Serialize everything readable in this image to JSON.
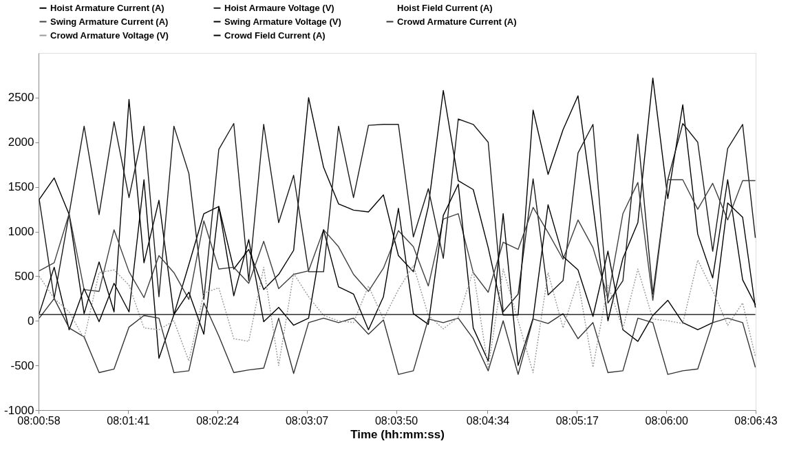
{
  "chart_data": {
    "type": "line",
    "xlabel": "Time (hh:mm:ss)",
    "xlim": [
      8.01611,
      8.11194
    ],
    "xticks": [
      {
        "value": 8.01611,
        "label": "08:00:58"
      },
      {
        "value": 8.02806,
        "label": "08:01:41"
      },
      {
        "value": 8.04,
        "label": "08:02:24"
      },
      {
        "value": 8.05194,
        "label": "08:03:07"
      },
      {
        "value": 8.06389,
        "label": "08:03:50"
      },
      {
        "value": 8.07611,
        "label": "08:04:34"
      },
      {
        "value": 8.08806,
        "label": "08:05:17"
      },
      {
        "value": 8.1,
        "label": "08:06:00"
      },
      {
        "value": 8.11194,
        "label": "08:06:43"
      }
    ],
    "ylim": [
      -1000,
      3000
    ],
    "yticks": [
      -1000,
      -500,
      0,
      500,
      1000,
      1500,
      2000,
      2500
    ],
    "grid": false,
    "legend": "top",
    "marker": "none",
    "line_style": "solid",
    "x": [
      8.0162,
      8.0182,
      8.0202,
      8.0222,
      8.0242,
      8.0262,
      8.0282,
      8.0302,
      8.0322,
      8.0342,
      8.0362,
      8.0382,
      8.0402,
      8.0422,
      8.0442,
      8.0462,
      8.0482,
      8.0502,
      8.0522,
      8.0542,
      8.0562,
      8.0582,
      8.0602,
      8.0622,
      8.0642,
      8.0662,
      8.0682,
      8.0702,
      8.0722,
      8.0742,
      8.0762,
      8.0782,
      8.0802,
      8.0822,
      8.0842,
      8.0862,
      8.0882,
      8.0902,
      8.0922,
      8.0942,
      8.0962,
      8.0982,
      8.1002,
      8.1022,
      8.1042,
      8.1062,
      8.1082,
      8.1102,
      8.1119
    ],
    "series": [
      {
        "name": "Hoist Armature Current (A)",
        "color": "#000000",
        "values": [
          1360,
          1600,
          1190,
          80,
          660,
          100,
          2480,
          650,
          1350,
          70,
          630,
          1200,
          1280,
          580,
          800,
          350,
          520,
          790,
          2500,
          1720,
          1310,
          1240,
          1220,
          1410,
          730,
          550,
          1280,
          2580,
          1570,
          1470,
          820,
          65,
          65,
          2360,
          1640,
          2140,
          2520,
          1290,
          0,
          700,
          1100,
          2720,
          1370,
          2420,
          970,
          480,
          1580,
          460,
          180
        ]
      },
      {
        "name": "Hoist Armaure Voltage (V)",
        "color": "#1a1a1a",
        "values": [
          1360,
          250,
          1200,
          2180,
          1190,
          2230,
          1380,
          2180,
          270,
          2180,
          1650,
          240,
          1920,
          2210,
          450,
          2200,
          1100,
          1630,
          550,
          550,
          2180,
          1380,
          2190,
          2200,
          2200,
          940,
          1480,
          700,
          2260,
          2200,
          2000,
          100,
          300,
          1590,
          290,
          450,
          1880,
          2200,
          200,
          450,
          2090,
          300,
          1580,
          2210,
          2000,
          780,
          1930,
          2200,
          930
        ]
      },
      {
        "name": "Hoist Field Current (A)",
        "values": [
          null,
          null,
          null,
          null,
          null,
          null,
          null,
          null,
          null,
          null,
          null,
          null,
          null,
          null,
          null,
          null,
          null,
          null,
          null,
          null,
          null,
          null,
          null,
          null,
          null,
          null,
          null,
          null,
          null,
          null,
          null,
          null,
          null,
          null,
          null,
          null,
          null,
          null,
          null,
          null,
          null,
          null,
          null,
          null,
          null,
          null,
          null,
          null,
          null
        ]
      },
      {
        "name": "Swing Armature Current (A)",
        "color": "#404040",
        "values": [
          560,
          650,
          1200,
          350,
          330,
          1020,
          550,
          260,
          730,
          540,
          240,
          1120,
          580,
          600,
          420,
          890,
          360,
          520,
          560,
          1020,
          830,
          520,
          330,
          590,
          1010,
          830,
          390,
          1140,
          1200,
          540,
          320,
          880,
          800,
          1270,
          990,
          690,
          1130,
          820,
          260,
          1200,
          1550,
          230,
          1580,
          1580,
          1250,
          1540,
          1130,
          1570,
          1570
        ]
      },
      {
        "name": "Swing Armature Voltage (V)",
        "color": "#000000",
        "values": [
          80,
          600,
          -100,
          360,
          -10,
          420,
          100,
          1580,
          -420,
          70,
          320,
          -150,
          1280,
          280,
          910,
          -10,
          150,
          -50,
          30,
          1020,
          380,
          300,
          -100,
          270,
          1260,
          80,
          -40,
          1180,
          1530,
          -80,
          -450,
          1200,
          -500,
          30,
          1300,
          720,
          570,
          50,
          780,
          -100,
          -230,
          60,
          230,
          -20,
          -100,
          -20,
          1320,
          1160,
          150
        ]
      },
      {
        "name": "Crowd Armature Current (A)",
        "color": "#333333",
        "values": [
          30,
          250,
          -80,
          -180,
          -580,
          -540,
          -70,
          60,
          30,
          -580,
          -560,
          200,
          -170,
          -580,
          -550,
          -530,
          30,
          -590,
          -20,
          30,
          -20,
          30,
          -150,
          10,
          -600,
          -560,
          20,
          -20,
          30,
          -200,
          -560,
          0,
          -600,
          20,
          -30,
          80,
          -200,
          -20,
          -580,
          -560,
          30,
          -20,
          -600,
          -560,
          -540,
          -20,
          30,
          -20,
          -520
        ]
      },
      {
        "name": "Crowd Armature Voltage (V)",
        "color": "#999999",
        "line_style": "dotted",
        "values": [
          500,
          250,
          100,
          -200,
          540,
          570,
          400,
          -80,
          -100,
          0,
          -450,
          310,
          370,
          -200,
          -230,
          600,
          -500,
          530,
          270,
          60,
          0,
          -20,
          390,
          20,
          350,
          620,
          60,
          -90,
          40,
          560,
          -530,
          580,
          0,
          -580,
          540,
          -80,
          450,
          -520,
          400,
          -90,
          580,
          20,
          0,
          -30,
          680,
          340,
          -50,
          200,
          -400
        ]
      },
      {
        "name": "Crowd Field Current (A)",
        "color": "#000000",
        "x": [
          8.0162,
          8.1119
        ],
        "values": [
          70,
          70
        ]
      }
    ]
  }
}
